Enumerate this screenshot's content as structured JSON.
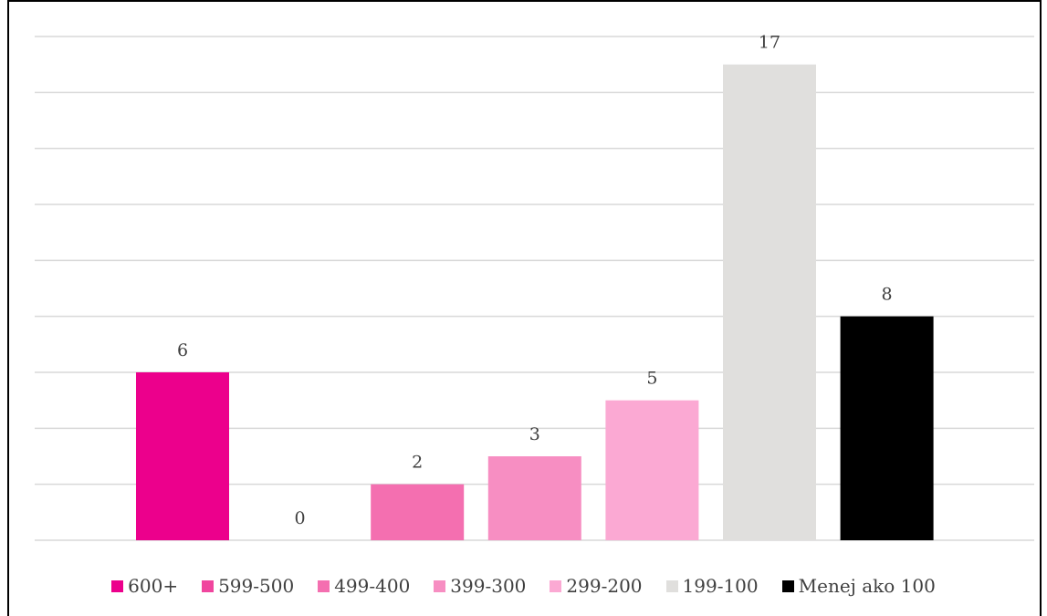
{
  "chart_data": {
    "type": "bar",
    "categories": [
      "600+",
      "599-500",
      "499-400",
      "399-300",
      "299-200",
      "199-100",
      "Menej ako 100"
    ],
    "values": [
      6,
      0,
      2,
      3,
      5,
      17,
      8
    ],
    "colors": [
      "#EC008C",
      "#F0459E",
      "#F46FB0",
      "#F78EC2",
      "#FBA9D3",
      "#E0DFDD",
      "#000000"
    ],
    "ylim": [
      0,
      18
    ],
    "grid": true,
    "legend_position": "bottom"
  }
}
